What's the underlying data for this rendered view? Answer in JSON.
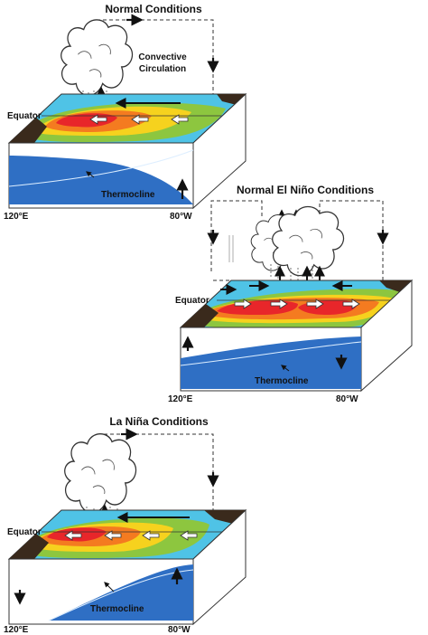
{
  "panels": {
    "normal": {
      "title": "Normal Conditions",
      "circulation_label_line1": "Convective",
      "circulation_label_line2": "Circulation",
      "equator_label": "Equator",
      "thermocline_label": "Thermocline",
      "west_label": "120°E",
      "east_label": "80°W"
    },
    "el_nino": {
      "title": "Normal El Niño Conditions",
      "equator_label": "Equator",
      "thermocline_label": "Thermocline",
      "west_label": "120°E",
      "east_label": "80°W"
    },
    "la_nina": {
      "title": "La Niña Conditions",
      "equator_label": "Equator",
      "thermocline_label": "Thermocline",
      "west_label": "120°E",
      "east_label": "80°W"
    }
  },
  "colors": {
    "warm_core": "#e8262a",
    "warm": "#f47b20",
    "mild": "#f6d21e",
    "cool": "#8dc63f",
    "cold": "#4fc3e6",
    "deep_water": "#2f6fc4",
    "land": "#3a2a1c"
  }
}
